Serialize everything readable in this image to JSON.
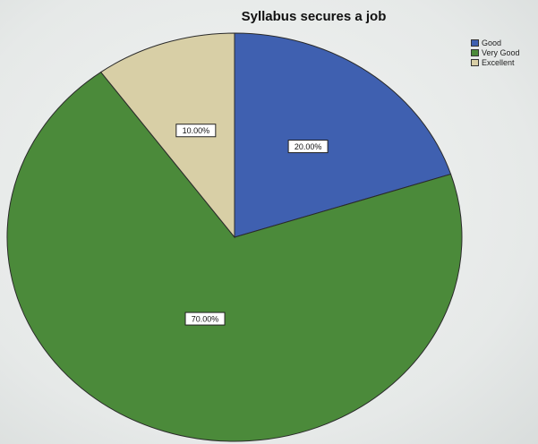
{
  "chart_data": {
    "type": "pie",
    "title": "Syllabus secures a job",
    "categories": [
      "Good",
      "Very Good",
      "Excellent"
    ],
    "values": [
      20.0,
      70.0,
      10.0
    ],
    "labels": [
      "20.00%",
      "70.00%",
      "10.00%"
    ],
    "colors": [
      "#3f60b0",
      "#4b8a3a",
      "#d8cfa6"
    ],
    "start_angle_deg": 0,
    "direction": "clockwise",
    "legend": {
      "position": "top-right",
      "entries": [
        "Good",
        "Very Good",
        "Excellent"
      ]
    }
  }
}
